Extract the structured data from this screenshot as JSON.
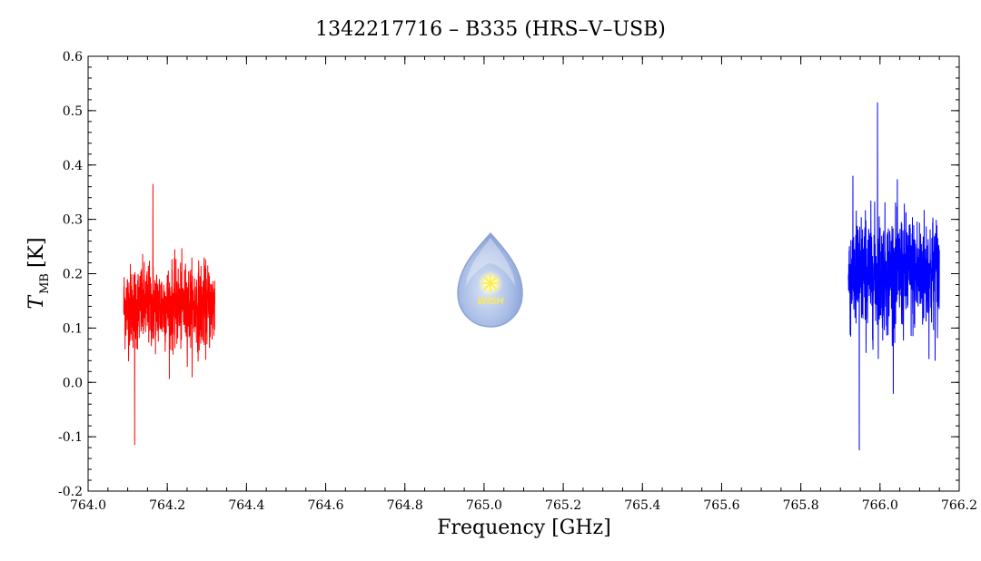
{
  "chart_data": {
    "type": "line",
    "title": "1342217716 – B335 (HRS–V–USB)",
    "xlabel": "Frequency [GHz]",
    "ylabel": {
      "symbol": "T",
      "subscript": "MB",
      "unit": "[K]"
    },
    "xlim": [
      764.0,
      766.2
    ],
    "ylim": [
      -0.2,
      0.6
    ],
    "x_ticks": [
      "764.0",
      "764.2",
      "764.4",
      "764.6",
      "764.8",
      "765.0",
      "765.2",
      "765.4",
      "765.6",
      "765.8",
      "766.0",
      "766.2"
    ],
    "y_ticks": [
      "-0.2",
      "-0.1",
      "0.0",
      "0.1",
      "0.2",
      "0.3",
      "0.4",
      "0.5",
      "0.6"
    ],
    "grid": false,
    "logo_text": "WISH",
    "series": [
      {
        "color": "#ff0000",
        "x_range": [
          764.09,
          764.32
        ],
        "mean": 0.14,
        "noise_spread": 0.07,
        "min": -0.115,
        "max": 0.365
      },
      {
        "color": "#0000ff",
        "x_range": [
          765.92,
          766.15
        ],
        "mean": 0.2,
        "noise_spread": 0.1,
        "min": -0.125,
        "max": 0.515
      }
    ]
  }
}
